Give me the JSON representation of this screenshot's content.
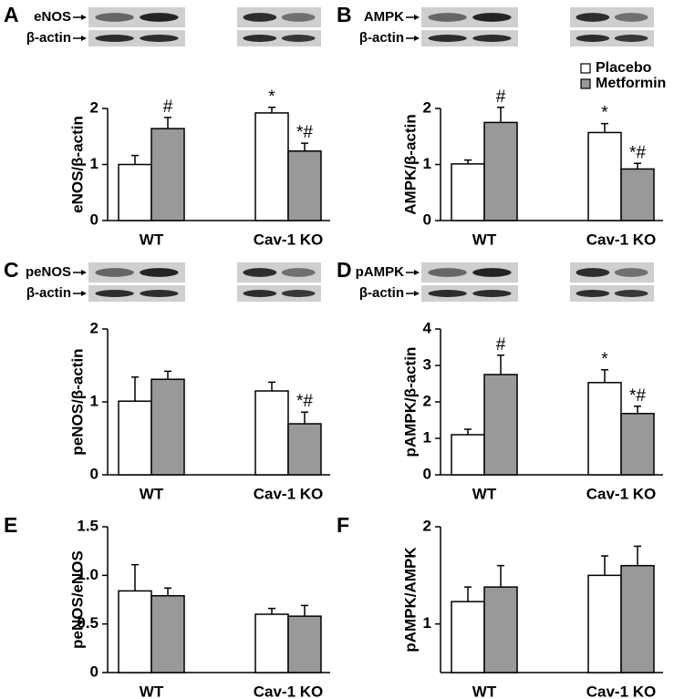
{
  "chart_data": [
    {
      "type": "bar",
      "panel_label": "A",
      "blot_labels": [
        "eNOS",
        "β-actin"
      ],
      "y_label": "eNOS/β-actin",
      "categories": [
        "WT",
        "Cav-1 KO"
      ],
      "ylim": [
        0,
        2
      ],
      "yticks": [
        0,
        1,
        2
      ],
      "series": [
        {
          "color": "#ffffff",
          "values": [
            1.0,
            1.92
          ],
          "errors": [
            0.16,
            0.1
          ],
          "annotations": [
            null,
            "*"
          ]
        },
        {
          "color": "#999999",
          "values": [
            1.64,
            1.24
          ],
          "errors": [
            0.2,
            0.14
          ],
          "annotations": [
            "#",
            "*#"
          ]
        }
      ]
    },
    {
      "type": "bar",
      "panel_label": "B",
      "blot_labels": [
        "AMPK",
        "β-actin"
      ],
      "y_label": "AMPK/β-actin",
      "categories": [
        "WT",
        "Cav-1 KO"
      ],
      "ylim": [
        0,
        2
      ],
      "yticks": [
        0,
        1,
        2
      ],
      "legend": "top-right",
      "series": [
        {
          "name": "Placebo",
          "color": "#ffffff",
          "values": [
            1.01,
            1.57
          ],
          "errors": [
            0.07,
            0.16
          ],
          "annotations": [
            null,
            "*"
          ]
        },
        {
          "name": "Metformin",
          "color": "#999999",
          "values": [
            1.75,
            0.92
          ],
          "errors": [
            0.27,
            0.1
          ],
          "annotations": [
            "#",
            "*#"
          ]
        }
      ]
    },
    {
      "type": "bar",
      "panel_label": "C",
      "blot_labels": [
        "peNOS",
        "β-actin"
      ],
      "y_label": "peNOS/β-actin",
      "categories": [
        "WT",
        "Cav-1 KO"
      ],
      "ylim": [
        0,
        2
      ],
      "yticks": [
        0,
        1,
        2
      ],
      "series": [
        {
          "color": "#ffffff",
          "values": [
            1.01,
            1.15
          ],
          "errors": [
            0.33,
            0.12
          ],
          "annotations": [
            null,
            null
          ]
        },
        {
          "color": "#999999",
          "values": [
            1.31,
            0.7
          ],
          "errors": [
            0.11,
            0.16
          ],
          "annotations": [
            null,
            "*#"
          ]
        }
      ]
    },
    {
      "type": "bar",
      "panel_label": "D",
      "blot_labels": [
        "pAMPK",
        "β-actin"
      ],
      "y_label": "pAMPK/β-actin",
      "categories": [
        "WT",
        "Cav-1 KO"
      ],
      "ylim": [
        0,
        4
      ],
      "yticks": [
        0,
        1,
        2,
        3,
        4
      ],
      "series": [
        {
          "color": "#ffffff",
          "values": [
            1.1,
            2.53
          ],
          "errors": [
            0.15,
            0.35
          ],
          "annotations": [
            null,
            "*"
          ]
        },
        {
          "color": "#999999",
          "values": [
            2.75,
            1.68
          ],
          "errors": [
            0.53,
            0.2
          ],
          "annotations": [
            "#",
            "*#"
          ]
        }
      ]
    },
    {
      "type": "bar",
      "panel_label": "E",
      "y_label": "peNOS/eNOS",
      "categories": [
        "WT",
        "Cav-1 KO"
      ],
      "ylim": [
        0,
        1.5
      ],
      "yticks": [
        0,
        0.5,
        {
          "value": 1,
          "label": "1.0"
        },
        1.5
      ],
      "series": [
        {
          "color": "#ffffff",
          "values": [
            0.84,
            0.6
          ],
          "errors": [
            0.27,
            0.06
          ],
          "annotations": [
            null,
            null
          ]
        },
        {
          "color": "#999999",
          "values": [
            0.79,
            0.58
          ],
          "errors": [
            0.08,
            0.11
          ],
          "annotations": [
            null,
            null
          ]
        }
      ]
    },
    {
      "type": "bar",
      "panel_label": "F",
      "y_label": "pAMPK/AMPK",
      "categories": [
        "WT",
        "Cav-1 KO"
      ],
      "ylim": [
        0.5,
        2
      ],
      "yticks": [
        1,
        2
      ],
      "series": [
        {
          "color": "#ffffff",
          "values": [
            1.23,
            1.5
          ],
          "errors": [
            0.15,
            0.2
          ],
          "annotations": [
            null,
            null
          ]
        },
        {
          "color": "#999999",
          "values": [
            1.38,
            1.6
          ],
          "errors": [
            0.22,
            0.2
          ],
          "annotations": [
            null,
            null
          ]
        }
      ]
    }
  ]
}
